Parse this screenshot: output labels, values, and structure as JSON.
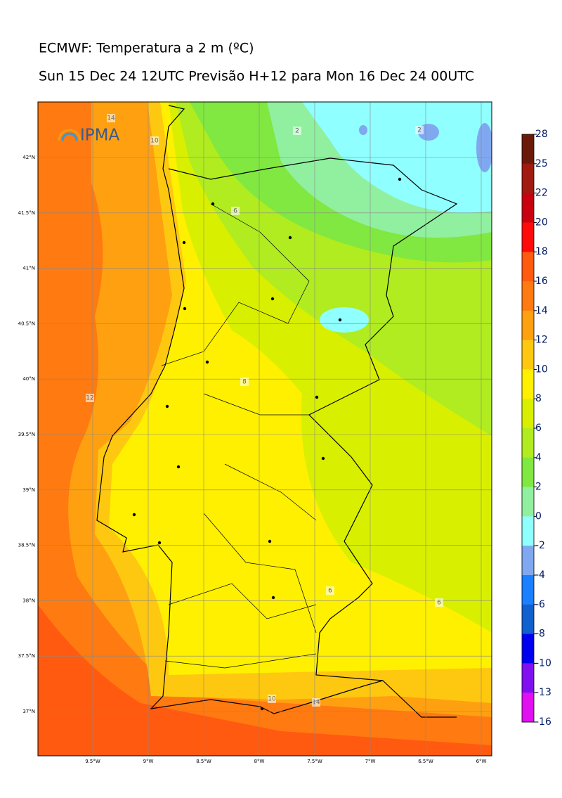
{
  "header": {
    "title": "ECMWF: Temperatura a 2 m (ºC)",
    "subtitle": "Sun 15 Dec 24 12UTC Previsão H+12 para Mon 16 Dec 24 00UTC"
  },
  "logo": "IPMA",
  "map": {
    "lat_labels": [
      "42°N",
      "41.5°N",
      "41°N",
      "40.5°N",
      "40°N",
      "39.5°N",
      "39°N",
      "38.5°N",
      "38°N",
      "37.5°N",
      "37°N"
    ],
    "lon_labels": [
      "9.5°W",
      "9°W",
      "8.5°W",
      "8°W",
      "7.5°W",
      "7°W",
      "6.5°W",
      "6°W"
    ],
    "contour_labels": [
      "14",
      "10",
      "6",
      "2",
      "2",
      "12",
      "8",
      "6",
      "6",
      "10",
      "14"
    ]
  },
  "colorbar": {
    "labels": [
      "28",
      "25",
      "22",
      "20",
      "18",
      "16",
      "14",
      "12",
      "10",
      "8",
      "6",
      "4",
      "2",
      "0",
      "-2",
      "-4",
      "-6",
      "-8",
      "-10",
      "-13",
      "-16"
    ],
    "colors": [
      "#6b1a0a",
      "#a01a10",
      "#c80010",
      "#ff0a0a",
      "#ff5a10",
      "#ff7a10",
      "#ffa010",
      "#ffc810",
      "#fff000",
      "#d8f000",
      "#b0ec20",
      "#80e840",
      "#90f0a0",
      "#90ffff",
      "#80a8f0",
      "#1a80ff",
      "#1060d0",
      "#0000f0",
      "#8010f0",
      "#e010f0"
    ]
  }
}
